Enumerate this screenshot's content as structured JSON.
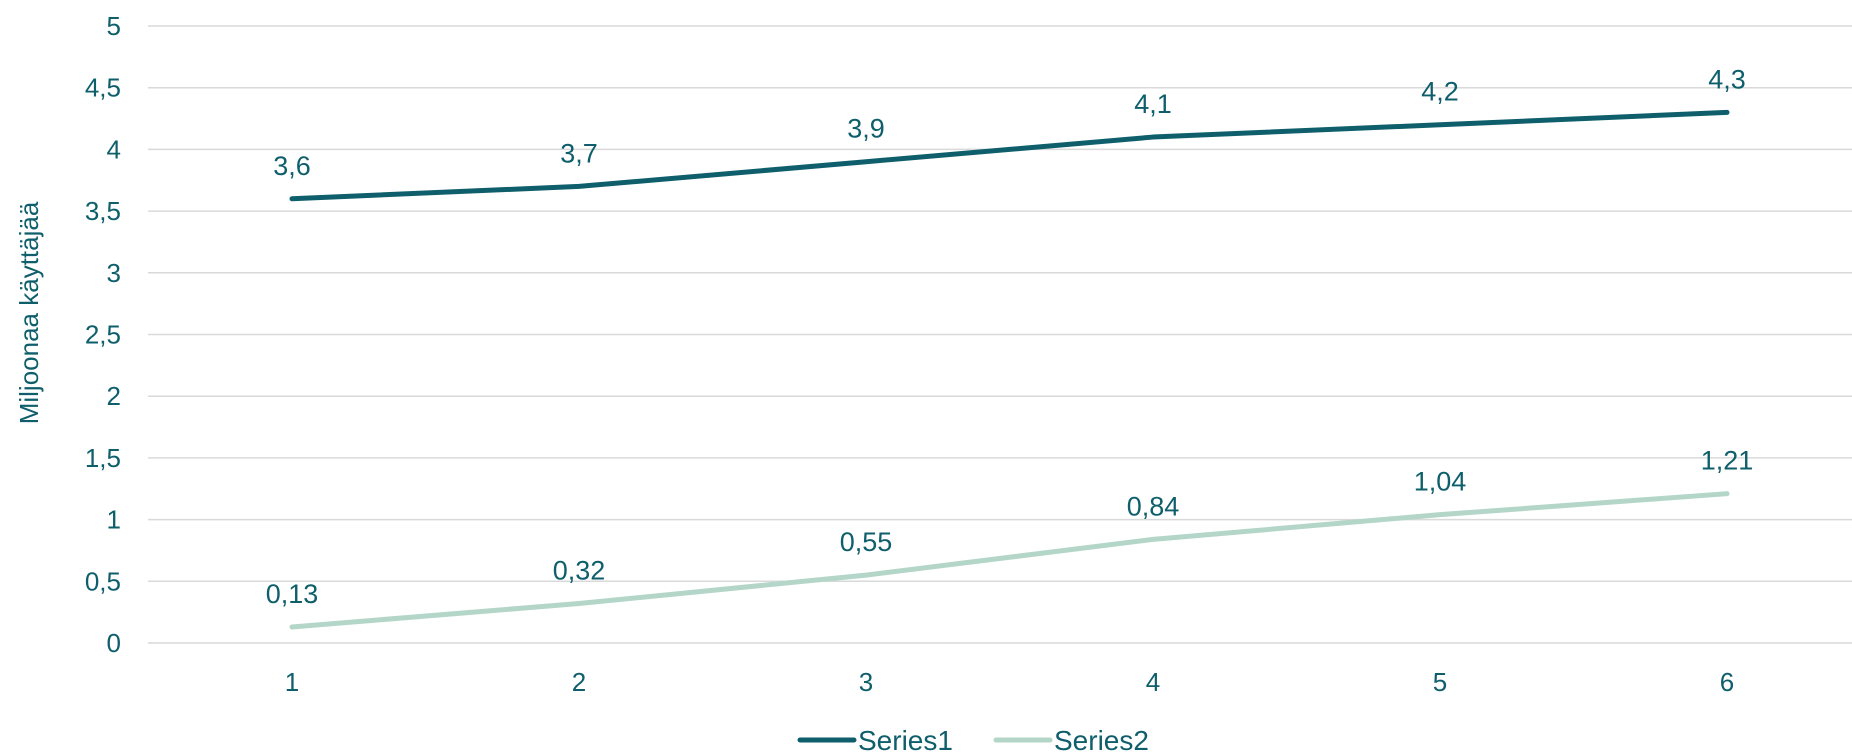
{
  "chart_data": {
    "type": "line",
    "title": "",
    "xlabel": "",
    "ylabel": "Miljoonaa käyttäjää",
    "x": [
      "1",
      "2",
      "3",
      "4",
      "5",
      "6"
    ],
    "ylim": [
      0,
      5
    ],
    "yticks": [
      "0",
      "0,5",
      "1",
      "1,5",
      "2",
      "2,5",
      "3",
      "3,5",
      "4",
      "4,5",
      "5"
    ],
    "grid": true,
    "legend_position": "bottom",
    "series": [
      {
        "name": "Series1",
        "values": [
          3.6,
          3.7,
          3.9,
          4.1,
          4.2,
          4.3
        ],
        "labels": [
          "3,6",
          "3,7",
          "3,9",
          "4,1",
          "4,2",
          "4,3"
        ],
        "color": "#0e5f6b"
      },
      {
        "name": "Series2",
        "values": [
          0.13,
          0.32,
          0.55,
          0.84,
          1.04,
          1.21
        ],
        "labels": [
          "0,13",
          "0,32",
          "0,55",
          "0,84",
          "1,04",
          "1,21"
        ],
        "color": "#b3d6c9"
      }
    ]
  }
}
